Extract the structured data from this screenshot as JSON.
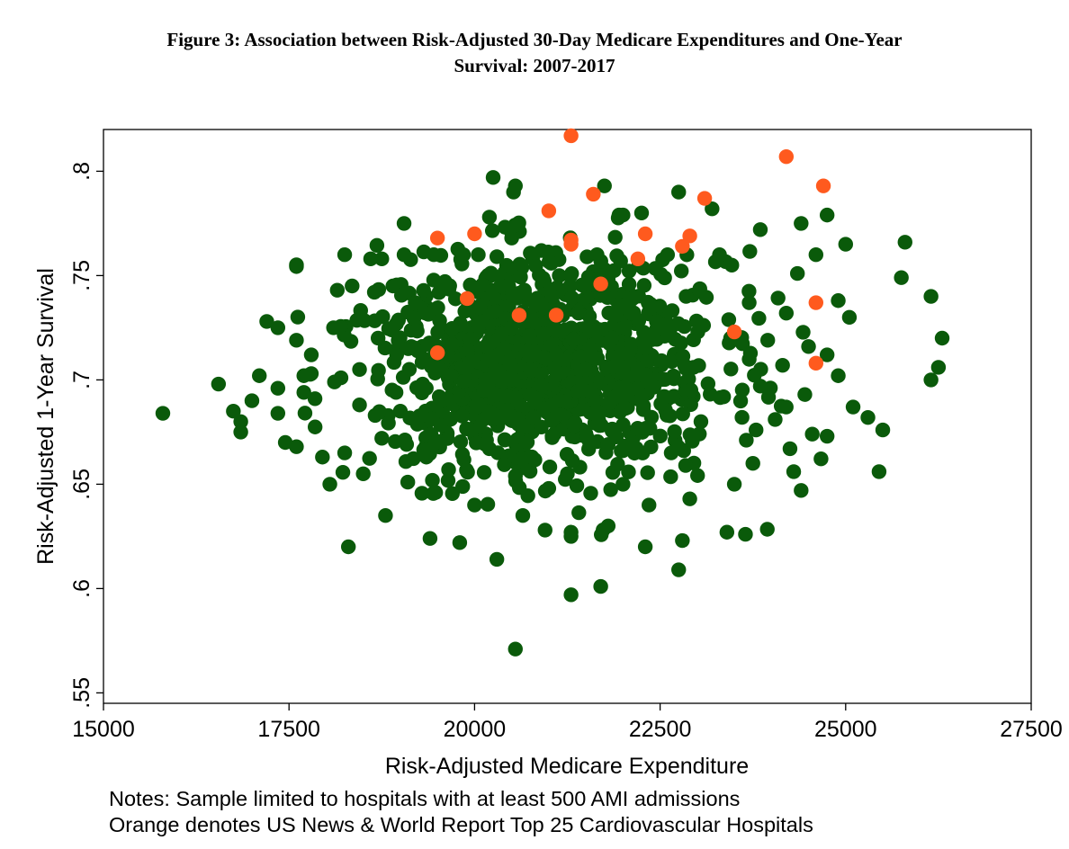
{
  "figure": {
    "title_line1": "Figure 3: Association between Risk-Adjusted 30-Day Medicare Expenditures and One-Year",
    "title_line2": "Survival: 2007-2017"
  },
  "notes": {
    "line1": "Notes: Sample limited to hospitals with at least 500 AMI admissions",
    "line2": "Orange denotes US News & World Report Top 25 Cardiovascular Hospitals"
  },
  "chart_data": {
    "type": "scatter",
    "title": "",
    "xlabel": "Risk-Adjusted Medicare Expenditure",
    "ylabel": "Risk-Adjusted 1-Year Survival",
    "xlim": [
      15000,
      27500
    ],
    "ylim": [
      0.545,
      0.82
    ],
    "x_ticks": [
      15000,
      17500,
      20000,
      22500,
      25000,
      27500
    ],
    "x_tick_labels": [
      "15000",
      "17500",
      "20000",
      "22500",
      "25000",
      "27500"
    ],
    "y_ticks": [
      0.55,
      0.6,
      0.65,
      0.7,
      0.75,
      0.8
    ],
    "y_tick_labels": [
      ".55",
      ".6",
      ".65",
      ".7",
      ".75",
      ".8"
    ],
    "grid": false,
    "colors": {
      "all_hospitals": "#0a5a0a",
      "top25": "#ff5a1e"
    },
    "series": [
      {
        "name": "Top 25",
        "color": "#ff5a1e",
        "points": [
          [
            21300,
            0.817
          ],
          [
            24200,
            0.807
          ],
          [
            24700,
            0.793
          ],
          [
            21600,
            0.789
          ],
          [
            23100,
            0.787
          ],
          [
            21000,
            0.781
          ],
          [
            19500,
            0.768
          ],
          [
            20000,
            0.77
          ],
          [
            21300,
            0.767
          ],
          [
            22300,
            0.77
          ],
          [
            22900,
            0.769
          ],
          [
            22800,
            0.764
          ],
          [
            21300,
            0.765
          ],
          [
            22200,
            0.758
          ],
          [
            21700,
            0.746
          ],
          [
            19900,
            0.739
          ],
          [
            20600,
            0.731
          ],
          [
            21100,
            0.731
          ],
          [
            24600,
            0.737
          ],
          [
            23500,
            0.723
          ],
          [
            19500,
            0.713
          ],
          [
            24600,
            0.708
          ]
        ]
      }
    ],
    "background_points": [
      [
        15800,
        0.684
      ],
      [
        16550,
        0.698
      ],
      [
        16750,
        0.685
      ],
      [
        16850,
        0.68
      ],
      [
        16850,
        0.675
      ],
      [
        17000,
        0.69
      ],
      [
        17100,
        0.702
      ],
      [
        17200,
        0.728
      ],
      [
        17350,
        0.725
      ],
      [
        17350,
        0.696
      ],
      [
        17350,
        0.684
      ],
      [
        17450,
        0.67
      ],
      [
        17600,
        0.719
      ],
      [
        17600,
        0.668
      ],
      [
        17700,
        0.702
      ],
      [
        17700,
        0.694
      ],
      [
        17800,
        0.712
      ],
      [
        17800,
        0.703
      ],
      [
        17850,
        0.691
      ],
      [
        17950,
        0.663
      ],
      [
        18050,
        0.65
      ],
      [
        18100,
        0.725
      ],
      [
        18150,
        0.743
      ],
      [
        18200,
        0.701
      ],
      [
        18250,
        0.665
      ],
      [
        18300,
        0.62
      ],
      [
        18250,
        0.76
      ],
      [
        18350,
        0.745
      ],
      [
        18450,
        0.705
      ],
      [
        18450,
        0.688
      ],
      [
        18500,
        0.655
      ],
      [
        18600,
        0.758
      ],
      [
        18650,
        0.742
      ],
      [
        18700,
        0.72
      ],
      [
        18750,
        0.758
      ],
      [
        18750,
        0.672
      ],
      [
        18800,
        0.635
      ],
      [
        18900,
        0.745
      ],
      [
        18950,
        0.712
      ],
      [
        19000,
        0.685
      ],
      [
        19050,
        0.775
      ],
      [
        19050,
        0.76
      ],
      [
        19100,
        0.651
      ],
      [
        19200,
        0.737
      ],
      [
        19300,
        0.698
      ],
      [
        19350,
        0.663
      ],
      [
        19400,
        0.624
      ],
      [
        19450,
        0.76
      ],
      [
        19550,
        0.69
      ],
      [
        19600,
        0.746
      ],
      [
        19650,
        0.657
      ],
      [
        19700,
        0.717
      ],
      [
        19800,
        0.622
      ],
      [
        19850,
        0.76
      ],
      [
        19900,
        0.706
      ],
      [
        19950,
        0.676
      ],
      [
        20000,
        0.64
      ],
      [
        20050,
        0.76
      ],
      [
        20100,
        0.728
      ],
      [
        20150,
        0.7
      ],
      [
        20200,
        0.778
      ],
      [
        20200,
        0.667
      ],
      [
        20250,
        0.797
      ],
      [
        20300,
        0.614
      ],
      [
        20350,
        0.745
      ],
      [
        20400,
        0.715
      ],
      [
        20450,
        0.692
      ],
      [
        20500,
        0.768
      ],
      [
        20550,
        0.793
      ],
      [
        20550,
        0.654
      ],
      [
        20550,
        0.571
      ],
      [
        20650,
        0.635
      ],
      [
        20700,
        0.728
      ],
      [
        20750,
        0.705
      ],
      [
        20800,
        0.682
      ],
      [
        20900,
        0.762
      ],
      [
        20950,
        0.628
      ],
      [
        21000,
        0.648
      ],
      [
        21050,
        0.74
      ],
      [
        21100,
        0.712
      ],
      [
        21150,
        0.69
      ],
      [
        21250,
        0.655
      ],
      [
        21300,
        0.597
      ],
      [
        21300,
        0.627
      ],
      [
        21400,
        0.732
      ],
      [
        21500,
        0.705
      ],
      [
        21550,
        0.67
      ],
      [
        21650,
        0.76
      ],
      [
        21700,
        0.601
      ],
      [
        21750,
        0.793
      ],
      [
        21800,
        0.63
      ],
      [
        21850,
        0.72
      ],
      [
        21900,
        0.692
      ],
      [
        22000,
        0.779
      ],
      [
        22000,
        0.65
      ],
      [
        22100,
        0.738
      ],
      [
        22200,
        0.705
      ],
      [
        22250,
        0.78
      ],
      [
        22300,
        0.62
      ],
      [
        22350,
        0.64
      ],
      [
        22450,
        0.728
      ],
      [
        22550,
        0.692
      ],
      [
        22600,
        0.76
      ],
      [
        22650,
        0.665
      ],
      [
        22750,
        0.79
      ],
      [
        22750,
        0.609
      ],
      [
        22800,
        0.623
      ],
      [
        22850,
        0.74
      ],
      [
        22900,
        0.643
      ],
      [
        22950,
        0.706
      ],
      [
        23050,
        0.68
      ],
      [
        23200,
        0.782
      ],
      [
        23300,
        0.76
      ],
      [
        23400,
        0.627
      ],
      [
        23450,
        0.72
      ],
      [
        23500,
        0.65
      ],
      [
        23650,
        0.626
      ],
      [
        23700,
        0.737
      ],
      [
        23750,
        0.66
      ],
      [
        23850,
        0.697
      ],
      [
        23850,
        0.772
      ],
      [
        23950,
        0.719
      ],
      [
        24050,
        0.681
      ],
      [
        24150,
        0.707
      ],
      [
        24200,
        0.732
      ],
      [
        24250,
        0.667
      ],
      [
        24300,
        0.656
      ],
      [
        24350,
        0.751
      ],
      [
        24400,
        0.647
      ],
      [
        24400,
        0.775
      ],
      [
        24450,
        0.693
      ],
      [
        24500,
        0.716
      ],
      [
        24550,
        0.674
      ],
      [
        24600,
        0.76
      ],
      [
        24750,
        0.779
      ],
      [
        24750,
        0.712
      ],
      [
        24750,
        0.673
      ],
      [
        24900,
        0.738
      ],
      [
        24900,
        0.702
      ],
      [
        25000,
        0.765
      ],
      [
        25050,
        0.73
      ],
      [
        25100,
        0.687
      ],
      [
        25300,
        0.682
      ],
      [
        25450,
        0.656
      ],
      [
        25500,
        0.676
      ],
      [
        25750,
        0.749
      ],
      [
        25800,
        0.766
      ],
      [
        26150,
        0.74
      ],
      [
        26150,
        0.7
      ],
      [
        26250,
        0.706
      ],
      [
        26300,
        0.72
      ]
    ]
  }
}
